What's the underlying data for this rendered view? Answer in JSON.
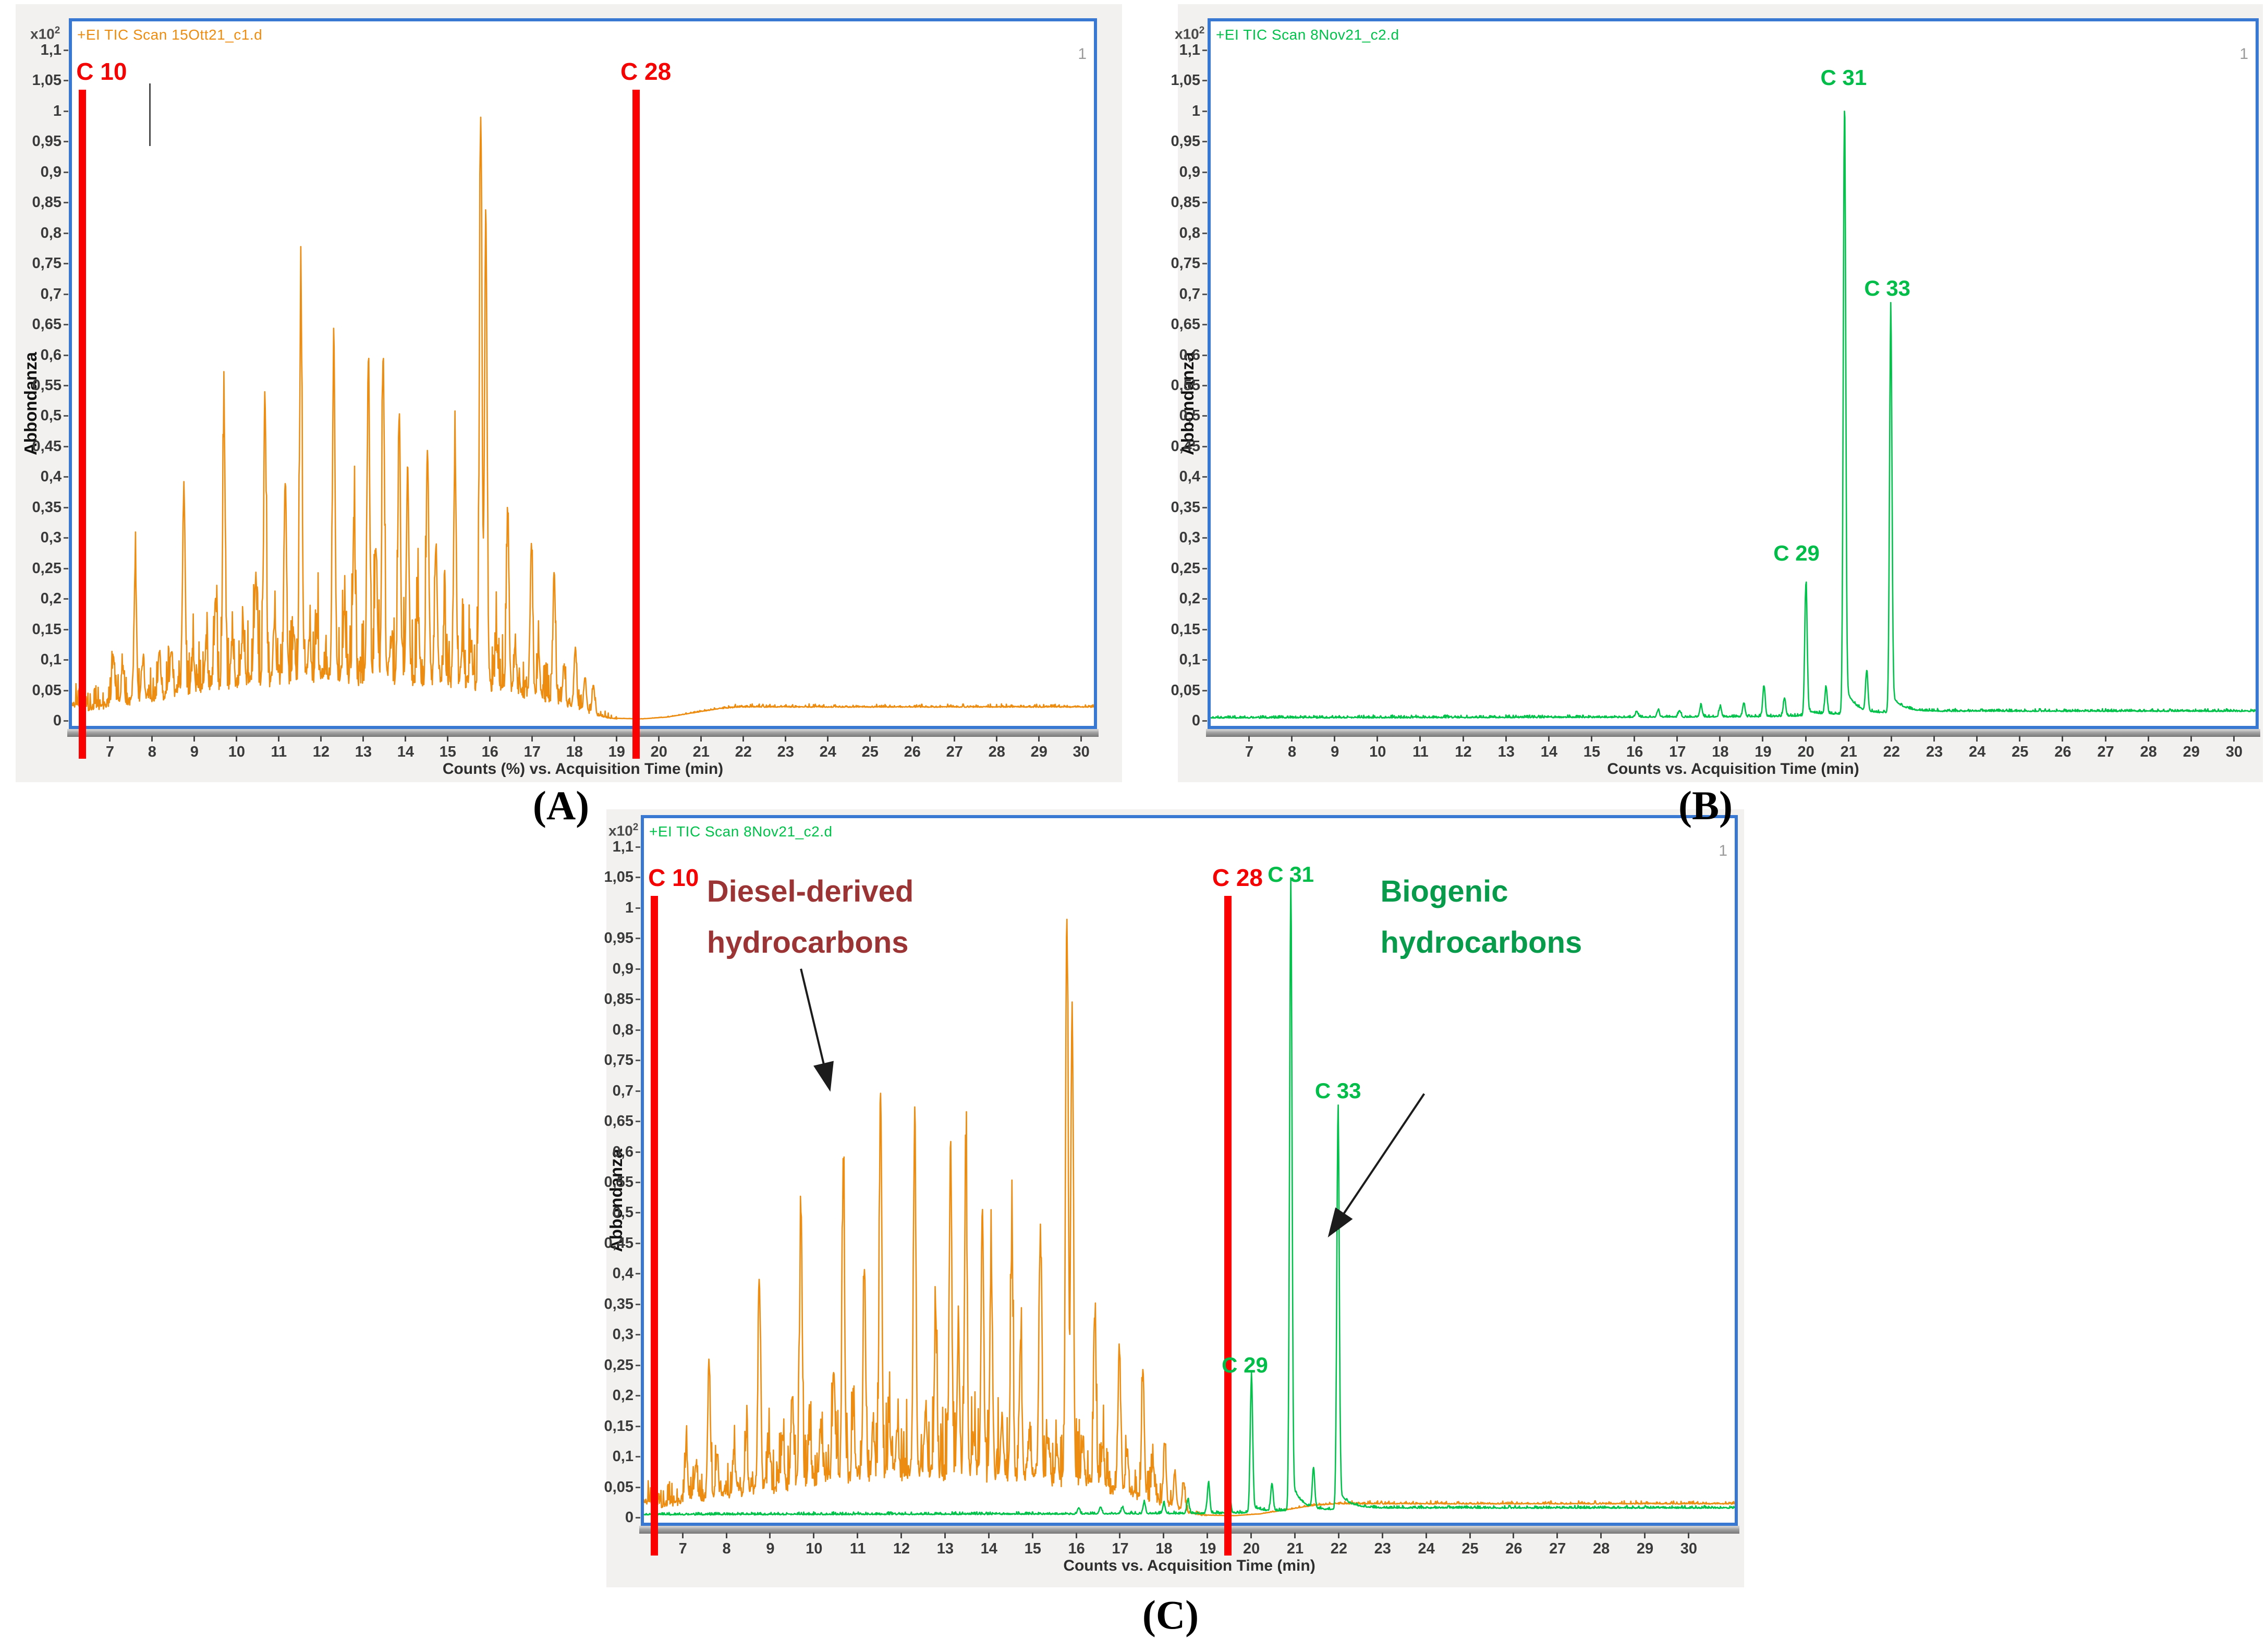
{
  "figure": {
    "captions": [
      "(A)",
      "(B)",
      "(C)"
    ]
  },
  "colors": {
    "diesel_trace": "#EC8C10",
    "biogenic_trace": "#00C24A",
    "marker_red": "#F40000",
    "diesel_annotation": "#9B3434",
    "biogenic_annotation": "#089B4C",
    "plot_border_blue": "#3878D3",
    "panel_gray": "#F2F1EF"
  },
  "series_defs": {
    "diesel": {
      "name": "Diesel-derived hydrocarbons",
      "color": "#EC8C10",
      "stroke_width": 2.6,
      "seed": 7,
      "sigma": 0.03,
      "tailing": false,
      "noise": "diesel",
      "base": [
        [
          6.1,
          0.03
        ],
        [
          6.55,
          0.022
        ],
        [
          7.0,
          0.032
        ],
        [
          7.6,
          0.04
        ],
        [
          8.2,
          0.05
        ],
        [
          9.0,
          0.058
        ],
        [
          10.0,
          0.072
        ],
        [
          11.0,
          0.082
        ],
        [
          12.0,
          0.086
        ],
        [
          13.0,
          0.086
        ],
        [
          14.0,
          0.082
        ],
        [
          15.0,
          0.078
        ],
        [
          15.8,
          0.072
        ],
        [
          16.4,
          0.062
        ],
        [
          17.0,
          0.05
        ],
        [
          17.6,
          0.038
        ],
        [
          18.1,
          0.025
        ],
        [
          18.55,
          0.01
        ],
        [
          18.9,
          0.004
        ],
        [
          19.6,
          0.003
        ],
        [
          20.2,
          0.006
        ],
        [
          20.8,
          0.013
        ],
        [
          21.4,
          0.02
        ],
        [
          21.9,
          0.023
        ],
        [
          30.5,
          0.023
        ],
        [
          31.1,
          0.023
        ]
      ],
      "peaks": [
        [
          7.08,
          0.115
        ],
        [
          7.3,
          0.095
        ],
        [
          7.6,
          0.26
        ],
        [
          7.78,
          0.105
        ],
        [
          8.17,
          0.115
        ],
        [
          8.45,
          0.125
        ],
        [
          8.75,
          0.39
        ],
        [
          8.97,
          0.125
        ],
        [
          9.28,
          0.14
        ],
        [
          9.5,
          0.205
        ],
        [
          9.7,
          0.52
        ],
        [
          9.9,
          0.15
        ],
        [
          10.15,
          0.16
        ],
        [
          10.45,
          0.25
        ],
        [
          10.67,
          0.55
        ],
        [
          10.9,
          0.18
        ],
        [
          11.15,
          0.41
        ],
        [
          11.35,
          0.16
        ],
        [
          11.52,
          0.715
        ],
        [
          11.72,
          0.155
        ],
        [
          11.9,
          0.165
        ],
        [
          12.3,
          0.635
        ],
        [
          12.55,
          0.19
        ],
        [
          12.78,
          0.345
        ],
        [
          13.12,
          0.615
        ],
        [
          13.3,
          0.305
        ],
        [
          13.47,
          0.6
        ],
        [
          13.65,
          0.145
        ],
        [
          13.85,
          0.515
        ],
        [
          14.05,
          0.43
        ],
        [
          14.3,
          0.18
        ],
        [
          14.52,
          0.455
        ],
        [
          14.72,
          0.295
        ],
        [
          14.92,
          0.145
        ],
        [
          15.17,
          0.46
        ],
        [
          15.35,
          0.14
        ],
        [
          15.55,
          0.125
        ],
        [
          15.78,
          1.0
        ],
        [
          15.9,
          0.845
        ],
        [
          16.15,
          0.135
        ],
        [
          16.42,
          0.34
        ],
        [
          16.6,
          0.125
        ],
        [
          16.98,
          0.29
        ],
        [
          17.15,
          0.115
        ],
        [
          17.52,
          0.245
        ],
        [
          17.75,
          0.095
        ],
        [
          18.02,
          0.125
        ],
        [
          18.25,
          0.075
        ],
        [
          18.45,
          0.06
        ]
      ]
    },
    "biogenic": {
      "name": "Biogenic hydrocarbons",
      "color": "#00C24A",
      "stroke_width": 2.6,
      "seed": 11,
      "sigma": 0.028,
      "tailing": true,
      "noise": "flat",
      "base": [
        [
          6.1,
          0.005
        ],
        [
          15.9,
          0.006
        ],
        [
          18.9,
          0.007
        ],
        [
          19.8,
          0.008
        ],
        [
          20.6,
          0.011
        ],
        [
          21.8,
          0.013
        ],
        [
          22.4,
          0.016
        ],
        [
          31.1,
          0.016
        ]
      ],
      "peaks": [
        [
          16.05,
          0.016
        ],
        [
          16.55,
          0.018
        ],
        [
          17.05,
          0.017
        ],
        [
          17.55,
          0.026
        ],
        [
          18.0,
          0.024
        ],
        [
          18.55,
          0.03
        ],
        [
          19.02,
          0.058
        ],
        [
          19.5,
          0.038
        ],
        [
          20.0,
          0.225
        ],
        [
          20.47,
          0.055
        ],
        [
          20.9,
          1.0
        ],
        [
          21.42,
          0.078
        ],
        [
          21.98,
          0.655
        ]
      ]
    }
  },
  "chart_data": [
    {
      "id": "A",
      "type": "line",
      "title": "+EI TIC Scan 15Ott21_c1.d",
      "title_color": "#EC8C10",
      "xlabel": "Counts (%) vs. Acquisition Time (min)",
      "ylabel": "Abbondanza",
      "y_scale": "x10",
      "y_scale_exp": "2",
      "corner_mark": "1",
      "grid": false,
      "xlim": [
        6.1,
        30.3
      ],
      "ylim": [
        0,
        1.1
      ],
      "x_ticks": [
        7,
        8,
        9,
        10,
        11,
        12,
        13,
        14,
        15,
        16,
        17,
        18,
        19,
        20,
        21,
        22,
        23,
        24,
        25,
        26,
        27,
        28,
        29,
        30
      ],
      "y_tick_labels": [
        "1,1",
        "1,05",
        "1",
        "0,95",
        "0,9",
        "0,85",
        "0,8",
        "0,75",
        "0,7",
        "0,65",
        "0,6",
        "0,55",
        "0,5",
        "0,45",
        "0,4",
        "0,35",
        "0,3",
        "0,25",
        "0,2",
        "0,15",
        "0,1",
        "0,05",
        "0"
      ],
      "series": [
        "diesel"
      ],
      "markers": [
        {
          "label": "C 10",
          "x": 6.35,
          "v_top": 1.035,
          "label_dx": -12
        },
        {
          "label": "C 28",
          "x": 19.46,
          "v_top": 1.035,
          "label_dx": -30
        }
      ],
      "artifact_line": {
        "x": 7.93,
        "v1": 0.943,
        "v2": 1.045
      },
      "peak_labels": [],
      "annotations": []
    },
    {
      "id": "B",
      "type": "line",
      "title": "+EI TIC Scan 8Nov21_c2.d",
      "title_color": "#00C24A",
      "xlabel": "Counts vs. Acquisition Time (min)",
      "ylabel": "Abbondanza",
      "y_scale": "x10",
      "y_scale_exp": "2",
      "corner_mark": "1",
      "grid": false,
      "xlim": [
        6.1,
        30.5
      ],
      "ylim": [
        0,
        1.1
      ],
      "x_ticks": [
        7,
        8,
        9,
        10,
        11,
        12,
        13,
        14,
        15,
        16,
        17,
        18,
        19,
        20,
        21,
        22,
        23,
        24,
        25,
        26,
        27,
        28,
        29,
        30
      ],
      "y_tick_labels": [
        "1,1",
        "1,05",
        "1",
        "0,95",
        "0,9",
        "0,85",
        "0,8",
        "0,75",
        "0,7",
        "0,65",
        "0,6",
        "0,55",
        "0,5",
        "0,45",
        "0,4",
        "0,35",
        "0,3",
        "0,25",
        "0,2",
        "0,15",
        "0,1",
        "0,05",
        "0"
      ],
      "series": [
        "biogenic"
      ],
      "markers": [],
      "peak_labels": [
        {
          "text": "C 29",
          "x": 19.78,
          "v": 0.295
        },
        {
          "text": "C 31",
          "x": 20.88,
          "v": 1.075
        },
        {
          "text": "C 33",
          "x": 21.9,
          "v": 0.73
        }
      ],
      "annotations": []
    },
    {
      "id": "C",
      "type": "line",
      "title": "+EI TIC Scan 8Nov21_c2.d",
      "title_color": "#00C24A",
      "xlabel": "Counts vs. Acquisition Time (min)",
      "ylabel": "Abbondanza",
      "y_scale": "x10",
      "y_scale_exp": "2",
      "corner_mark": "1",
      "grid": false,
      "xlim": [
        6.11,
        31.05
      ],
      "ylim": [
        0,
        1.1
      ],
      "x_ticks": [
        7,
        8,
        9,
        10,
        11,
        12,
        13,
        14,
        15,
        16,
        17,
        18,
        19,
        20,
        21,
        22,
        23,
        24,
        25,
        26,
        27,
        28,
        29,
        30
      ],
      "y_tick_labels": [
        "1,1",
        "1,05",
        "1",
        "0,95",
        "0,9",
        "0,85",
        "0,8",
        "0,75",
        "0,7",
        "0,65",
        "0,6",
        "0,55",
        "0,5",
        "0,45",
        "0,4",
        "0,35",
        "0,3",
        "0,25",
        "0,2",
        "0,15",
        "0,1",
        "0,05",
        "0"
      ],
      "series": [
        "diesel",
        "biogenic"
      ],
      "markers": [
        {
          "label": "C 10",
          "x": 6.35,
          "v_top": 1.02,
          "label_dx": -12
        },
        {
          "label": "C 28",
          "x": 19.46,
          "v_top": 1.02,
          "label_dx": -30
        }
      ],
      "peak_labels": [
        {
          "text": "C 29",
          "x": 19.85,
          "v": 0.27
        },
        {
          "text": "C 31",
          "x": 20.9,
          "v": 1.075
        },
        {
          "text": "C 33",
          "x": 21.98,
          "v": 0.72
        }
      ],
      "annotations": [
        {
          "name": "diesel-derived-callout",
          "text": "Diesel-derived\nhydrocarbons",
          "color": "#9B3434",
          "x": 7.55,
          "v": 1.068,
          "arrow": [
            9.7,
            0.9,
            10.35,
            0.705
          ]
        },
        {
          "name": "biogenic-callout",
          "text": "Biogenic\nhydrocarbons",
          "color": "#089B4C",
          "x": 22.95,
          "v": 1.068,
          "arrow": [
            23.95,
            0.695,
            21.8,
            0.465
          ]
        }
      ]
    }
  ]
}
